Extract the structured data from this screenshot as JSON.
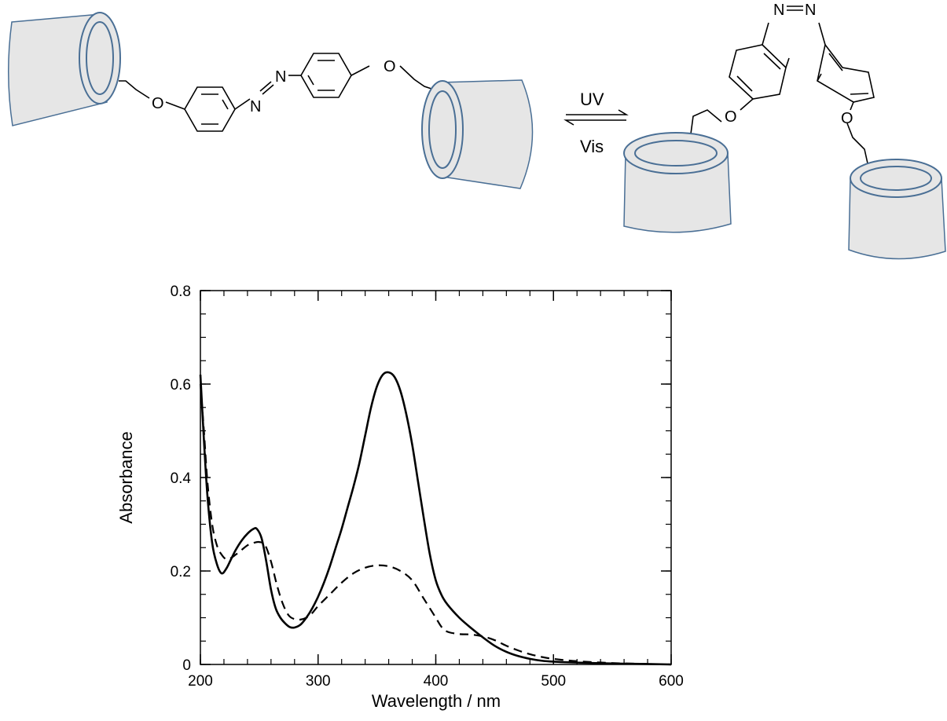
{
  "scheme": {
    "trans_atoms": {
      "o_left": "O",
      "n_upper": "N",
      "n_lower": "N",
      "o_right": "O"
    },
    "cis_atoms": {
      "n_left": "N",
      "n_right": "N",
      "o_left": "O",
      "o_right": "O"
    },
    "forward_label": "UV",
    "reverse_label": "Vis"
  },
  "chart_data": {
    "type": "line",
    "title": "",
    "xlabel": "Wavelength / nm",
    "ylabel": "Absorbance",
    "xlim": [
      200,
      600
    ],
    "ylim": [
      0,
      0.8
    ],
    "x_ticks": [
      200,
      300,
      400,
      500,
      600
    ],
    "y_ticks": [
      0,
      0.2,
      0.4,
      0.6,
      0.8
    ],
    "x_tick_labels": [
      "200",
      "300",
      "400",
      "500",
      "600"
    ],
    "y_tick_labels": [
      "0",
      "0.2",
      "0.4",
      "0.6",
      "0.8"
    ],
    "grid": false,
    "series": [
      {
        "style": "solid",
        "x": [
          200,
          203,
          206,
          210,
          214,
          218,
          222,
          226,
          230,
          235,
          240,
          245,
          248,
          252,
          256,
          260,
          264,
          268,
          272,
          276,
          280,
          285,
          290,
          295,
          300,
          305,
          310,
          315,
          320,
          325,
          330,
          335,
          340,
          345,
          350,
          355,
          360,
          365,
          370,
          375,
          380,
          385,
          390,
          395,
          400,
          405,
          410,
          420,
          430,
          440,
          450,
          460,
          470,
          480,
          490,
          500,
          520,
          550,
          580,
          600
        ],
        "y": [
          0.62,
          0.48,
          0.36,
          0.26,
          0.215,
          0.195,
          0.205,
          0.225,
          0.245,
          0.265,
          0.28,
          0.29,
          0.29,
          0.27,
          0.22,
          0.16,
          0.12,
          0.1,
          0.088,
          0.08,
          0.079,
          0.085,
          0.1,
          0.12,
          0.145,
          0.175,
          0.21,
          0.25,
          0.29,
          0.335,
          0.38,
          0.43,
          0.49,
          0.55,
          0.595,
          0.62,
          0.625,
          0.615,
          0.585,
          0.535,
          0.47,
          0.39,
          0.31,
          0.235,
          0.18,
          0.148,
          0.128,
          0.1,
          0.078,
          0.058,
          0.04,
          0.027,
          0.018,
          0.012,
          0.008,
          0.006,
          0.004,
          0.002,
          0.001,
          0.0
        ]
      },
      {
        "style": "dashed",
        "x": [
          200,
          203,
          206,
          210,
          214,
          218,
          222,
          226,
          230,
          235,
          240,
          245,
          250,
          255,
          260,
          265,
          270,
          275,
          280,
          285,
          290,
          295,
          300,
          310,
          320,
          330,
          340,
          350,
          360,
          370,
          380,
          390,
          400,
          405,
          410,
          420,
          430,
          440,
          450,
          460,
          470,
          480,
          490,
          500,
          520,
          550,
          580,
          600
        ],
        "y": [
          0.6,
          0.5,
          0.39,
          0.3,
          0.255,
          0.235,
          0.225,
          0.228,
          0.235,
          0.245,
          0.255,
          0.26,
          0.262,
          0.255,
          0.22,
          0.17,
          0.13,
          0.105,
          0.097,
          0.096,
          0.1,
          0.11,
          0.125,
          0.15,
          0.175,
          0.195,
          0.207,
          0.212,
          0.21,
          0.2,
          0.18,
          0.14,
          0.1,
          0.08,
          0.07,
          0.065,
          0.064,
          0.06,
          0.052,
          0.04,
          0.03,
          0.022,
          0.016,
          0.012,
          0.007,
          0.003,
          0.001,
          0.0
        ]
      }
    ]
  }
}
